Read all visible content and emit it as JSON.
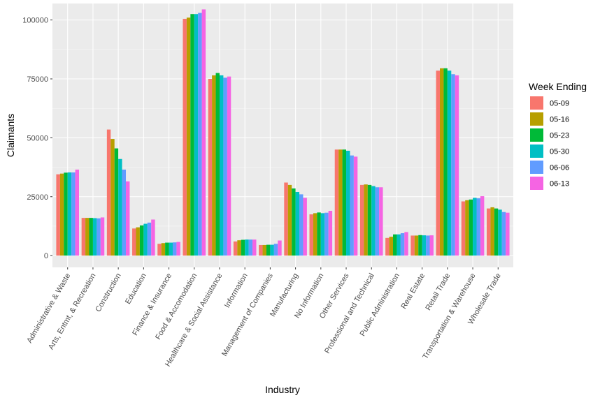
{
  "chart_data": {
    "type": "bar",
    "title": "",
    "xlabel": "Industry",
    "ylabel": "Claimants",
    "ylim": [
      -5000,
      107000
    ],
    "yticks": [
      0,
      25000,
      50000,
      75000,
      100000
    ],
    "ytick_labels": [
      "0",
      "25000",
      "50000",
      "75000",
      "100000"
    ],
    "grid": true,
    "legend": {
      "title": "Week Ending",
      "position": "right"
    },
    "categories": [
      "Administrative & Waste",
      "Arts, Entmt, & Recreation",
      "Construction",
      "Education",
      "Finance & Insurance",
      "Food & Accomodation",
      "Healthcare & Social Assistance",
      "Information",
      "Management of Companies",
      "Manufacturing",
      "No Information",
      "Other Services",
      "Professional and Technical",
      "Public Administration",
      "Real Estate",
      "Retail Trade",
      "Transportation & Warehouse",
      "Wholesale Trade"
    ],
    "series": [
      {
        "name": "05-09",
        "color": "#F8766D",
        "values": [
          34500,
          16000,
          53500,
          11500,
          5000,
          100500,
          75000,
          6000,
          4500,
          31000,
          17500,
          45000,
          30000,
          7500,
          8500,
          78500,
          23000,
          20000
        ]
      },
      {
        "name": "05-16",
        "color": "#B79F00",
        "values": [
          34800,
          16000,
          49500,
          12000,
          5300,
          101000,
          76500,
          6500,
          4500,
          30000,
          18000,
          45000,
          30200,
          8000,
          8500,
          79500,
          23500,
          20500
        ]
      },
      {
        "name": "05-23",
        "color": "#00BA38",
        "values": [
          35200,
          16000,
          45500,
          12800,
          5500,
          102500,
          77500,
          6700,
          4600,
          28500,
          18300,
          45000,
          30000,
          9000,
          8700,
          79500,
          23800,
          20000
        ]
      },
      {
        "name": "05-30",
        "color": "#00BFC4",
        "values": [
          35300,
          15900,
          41000,
          13500,
          5500,
          102500,
          76500,
          6800,
          4600,
          27000,
          18000,
          44500,
          29500,
          9000,
          8600,
          78500,
          24500,
          19500
        ]
      },
      {
        "name": "06-06",
        "color": "#619CFF",
        "values": [
          35300,
          15800,
          36500,
          14000,
          5600,
          103000,
          75500,
          6800,
          5000,
          26000,
          18200,
          42500,
          29000,
          9500,
          8500,
          77000,
          24300,
          18500
        ]
      },
      {
        "name": "06-13",
        "color": "#F564E3",
        "values": [
          36500,
          16200,
          31500,
          15300,
          5800,
          104500,
          76000,
          6800,
          6400,
          24500,
          19000,
          42000,
          29000,
          10000,
          8600,
          76500,
          25200,
          18200
        ]
      }
    ]
  }
}
